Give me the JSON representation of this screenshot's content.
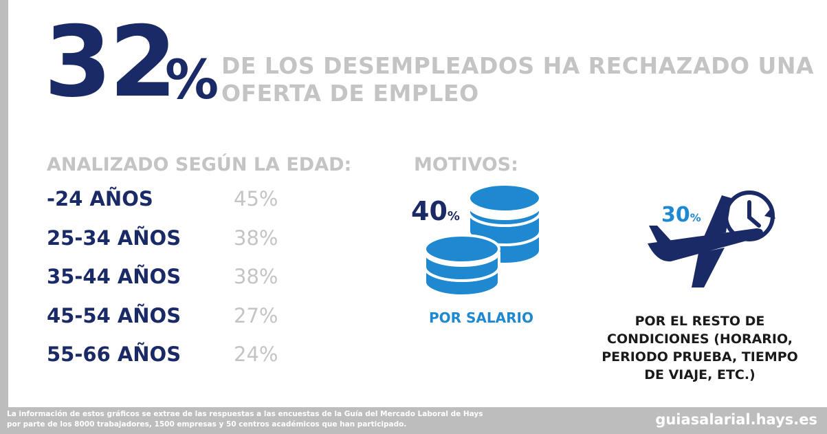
{
  "headline": {
    "number": "32",
    "percent": "%",
    "text_lines": [
      "DE LOS DESEMPLEADOS HA RECHAZADO UNA",
      "OFERTA DE EMPLEO"
    ]
  },
  "age": {
    "title": "ANALIZADO SEGÚN LA EDAD:",
    "rows": [
      {
        "label": "-24 AÑOS",
        "value": "45%"
      },
      {
        "label": "25-34 AÑOS",
        "value": "38%"
      },
      {
        "label": "35-44 AÑOS",
        "value": "38%"
      },
      {
        "label": "45-54 AÑOS",
        "value": "27%"
      },
      {
        "label": "55-66 AÑOS",
        "value": "24%"
      }
    ]
  },
  "motivos": {
    "title": "MOTIVOS:",
    "salary": {
      "number": "40",
      "percent": "%",
      "label": "POR SALARIO",
      "icon": "coins-icon"
    },
    "other": {
      "number": "30",
      "percent": "%",
      "label_lines": [
        "POR EL RESTO DE",
        "CONDICIONES (HORARIO,",
        "PERIODO PRUEBA, TIEMPO",
        "DE VIAJE, ETC.)"
      ],
      "icon": "plane-clock-icon"
    }
  },
  "footer": {
    "note_lines": [
      "La información de estos gráficos se extrae de las respuestas a las encuestas de la Guía del Mercado Laboral de Hays",
      "por parte de los 8000 trabajadores, 1500 empresas y 50 centros académicos  que han participado."
    ],
    "url": "guiasalarial.hays.es"
  },
  "colors": {
    "navy": "#1a2a66",
    "blue": "#1e88d0",
    "gray": "#c4c4c4",
    "footer_bg": "#bdbdbd"
  }
}
